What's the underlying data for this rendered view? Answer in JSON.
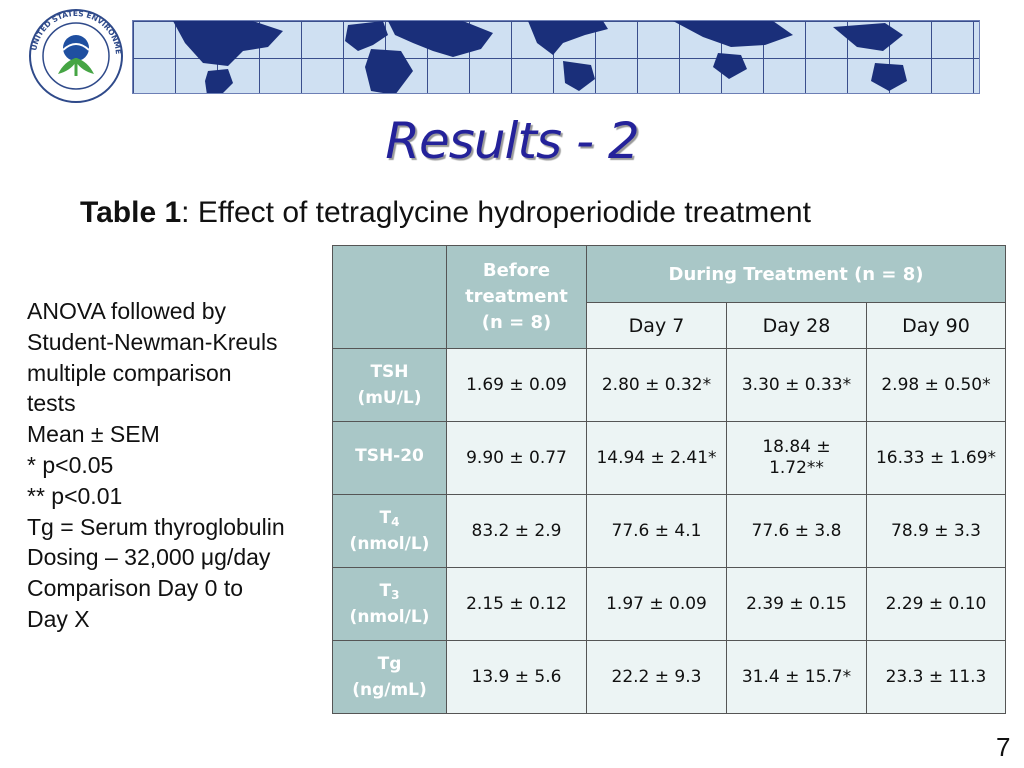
{
  "header": {
    "logo_text": "UNITED STATES ENVIRONMENTAL PROTECTION AGENCY"
  },
  "title": "Results - 2",
  "caption": {
    "bold": "Table 1",
    "rest": ": Effect of tetraglycine hydroperiodide treatment"
  },
  "notes": [
    "ANOVA followed by",
    "Student-Newman-Kreuls",
    "multiple comparison",
    "tests",
    "Mean ± SEM",
    "* p<0.05",
    "** p<0.01",
    "Tg = Serum thyroglobulin",
    "Dosing – 32,000 μg/day",
    "Comparison Day 0 to",
    "Day X"
  ],
  "table": {
    "before_header": [
      "Before",
      "treatment",
      "(n = 8)"
    ],
    "during_header": "During Treatment (n = 8)",
    "day_headers": [
      "Day 7",
      "Day 28",
      "Day 90"
    ],
    "rows": [
      {
        "label_main": "TSH",
        "label_sub": "",
        "label_unit": "(mU/L)",
        "values": [
          "1.69 ± 0.09",
          "2.80 ± 0.32*",
          "3.30 ± 0.33*",
          "2.98 ± 0.50*"
        ]
      },
      {
        "label_main": "TSH-20",
        "label_sub": "",
        "label_unit": "",
        "values": [
          "9.90 ± 0.77",
          "14.94 ± 2.41*",
          "18.84 ± 1.72**",
          "16.33 ± 1.69*"
        ]
      },
      {
        "label_main": "T",
        "label_sub": "4",
        "label_unit": "(nmol/L)",
        "values": [
          "83.2 ± 2.9",
          "77.6 ± 4.1",
          "77.6 ± 3.8",
          "78.9 ± 3.3"
        ]
      },
      {
        "label_main": "T",
        "label_sub": "3",
        "label_unit": "(nmol/L)",
        "values": [
          "2.15 ± 0.12",
          "1.97 ± 0.09",
          "2.39 ± 0.15",
          "2.29 ± 0.10"
        ]
      },
      {
        "label_main": "Tg",
        "label_sub": "",
        "label_unit": "(ng/mL)",
        "values": [
          "13.9 ± 5.6",
          "22.2 ± 9.3",
          "31.4 ± 15.7*",
          "23.3 ± 11.3"
        ]
      }
    ]
  },
  "page_number": "7",
  "colors": {
    "title": "#24229a",
    "table_header_bg": "#a9c7c7",
    "table_cell_bg": "#ecf4f4"
  }
}
